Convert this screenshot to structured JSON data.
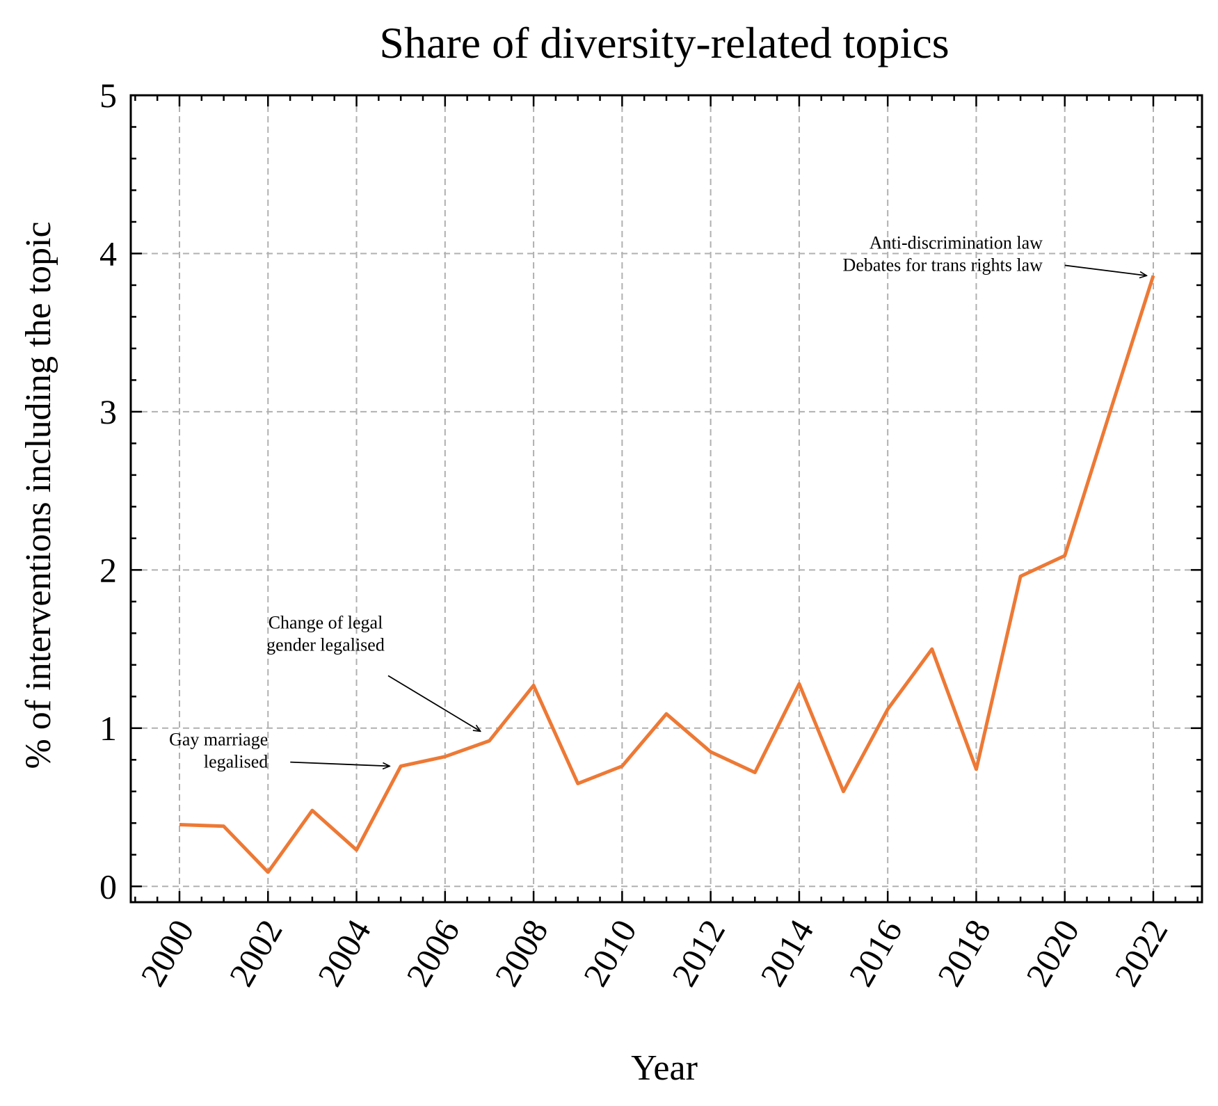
{
  "chart_data": {
    "type": "line",
    "title": "Share of diversity-related topics",
    "xlabel": "Year",
    "ylabel": "% of interventions including the topic",
    "xlim": [
      1998.9,
      2023.1
    ],
    "ylim": [
      -0.1,
      5
    ],
    "xticks": [
      2000,
      2002,
      2004,
      2006,
      2008,
      2010,
      2012,
      2014,
      2016,
      2018,
      2020,
      2022
    ],
    "yticks": [
      0,
      1,
      2,
      3,
      4,
      5
    ],
    "grid": true,
    "series": [
      {
        "color": "#ED7935",
        "x": [
          2000,
          2001,
          2002,
          2003,
          2004,
          2005,
          2006,
          2007,
          2008,
          2009,
          2010,
          2011,
          2012,
          2013,
          2014,
          2015,
          2016,
          2017,
          2018,
          2019,
          2020,
          2021,
          2022
        ],
        "y": [
          0.39,
          0.38,
          0.09,
          0.48,
          0.23,
          0.76,
          0.82,
          0.92,
          1.27,
          0.65,
          0.76,
          1.09,
          0.85,
          0.72,
          1.28,
          0.6,
          1.12,
          1.5,
          0.74,
          1.96,
          2.09,
          2.98,
          3.86
        ]
      }
    ],
    "annotations": [
      {
        "lines": [
          "Gay marriage",
          "legalised"
        ],
        "align": "end",
        "text_x": 2002.0,
        "text_y": 0.86,
        "target_x": 2004.75,
        "target_y": 0.76
      },
      {
        "lines": [
          "Change of legal",
          "gender legalised"
        ],
        "align": "middle",
        "text_x": 2003.3,
        "text_y": 1.6,
        "target_x": 2006.8,
        "target_y": 0.98
      },
      {
        "lines": [
          "Anti-discrimination law",
          "Debates for trans rights law"
        ],
        "align": "end",
        "text_x": 2019.5,
        "text_y": 4.0,
        "target_x": 2021.85,
        "target_y": 3.86
      }
    ]
  }
}
